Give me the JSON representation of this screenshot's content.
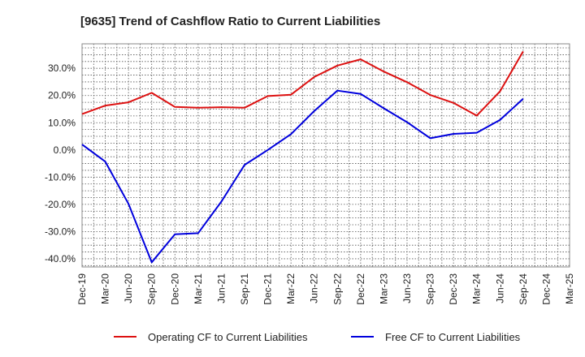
{
  "chart_data": {
    "type": "line",
    "title": "[9635]  Trend of Cashflow Ratio to Current Liabilities",
    "xlabel": "",
    "ylabel": "",
    "categories": [
      "Dec-19",
      "Mar-20",
      "Jun-20",
      "Sep-20",
      "Dec-20",
      "Mar-21",
      "Jun-21",
      "Sep-21",
      "Dec-21",
      "Mar-22",
      "Jun-22",
      "Sep-22",
      "Dec-22",
      "Mar-23",
      "Jun-23",
      "Sep-23",
      "Dec-23",
      "Mar-24",
      "Jun-24",
      "Sep-24",
      "Dec-24",
      "Mar-25"
    ],
    "y_ticks": [
      "-40.0%",
      "-30.0%",
      "-20.0%",
      "-10.0%",
      "0.0%",
      "10.0%",
      "20.0%",
      "30.0%"
    ],
    "ylim": [
      -43,
      39
    ],
    "grid": true,
    "legend_position": "bottom",
    "series": [
      {
        "name": "Operating CF to Current Liabilities",
        "color": "#dd1111",
        "values": [
          13.2,
          16.3,
          17.5,
          21.0,
          15.8,
          15.5,
          15.7,
          15.5,
          19.8,
          20.3,
          26.8,
          31.0,
          33.3,
          28.8,
          24.9,
          20.2,
          17.3,
          12.6,
          21.5,
          36.2,
          null,
          null
        ]
      },
      {
        "name": "Free CF to Current Liabilities",
        "color": "#0000dd",
        "values": [
          2.0,
          -4.3,
          -19.8,
          -41.3,
          -31.0,
          -30.6,
          -19.0,
          -5.5,
          0.0,
          5.8,
          14.3,
          21.8,
          20.6,
          15.3,
          10.2,
          4.3,
          5.9,
          6.3,
          11.0,
          18.8,
          null,
          null
        ]
      }
    ]
  }
}
